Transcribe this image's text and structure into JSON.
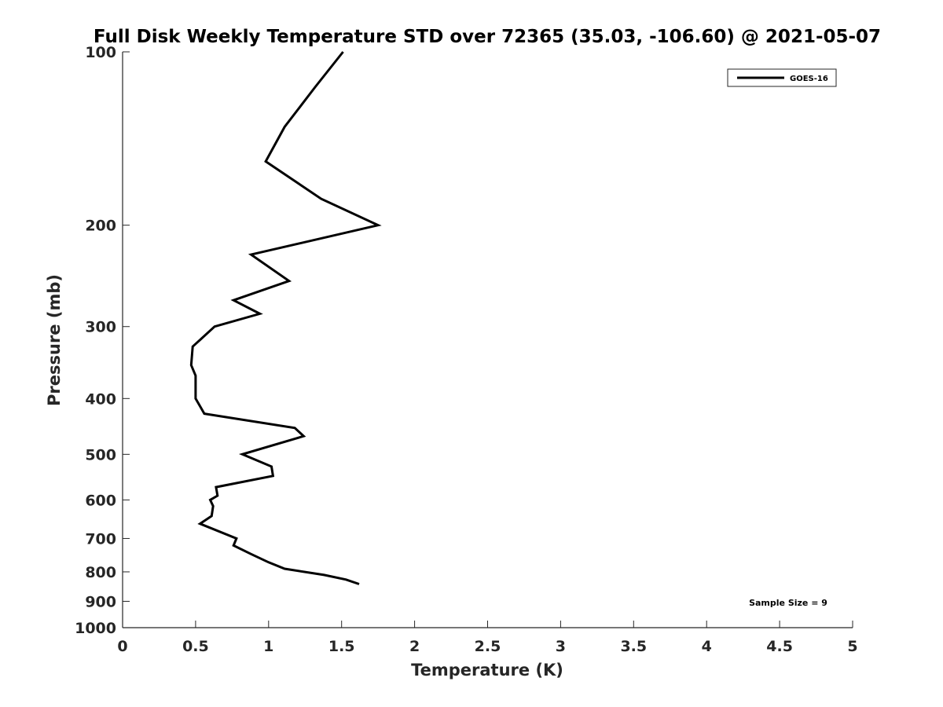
{
  "chart_data": {
    "type": "line",
    "title": "Full Disk Weekly Temperature STD over 72365 (35.03, -106.60) @ 2021-05-07",
    "xlabel": "Temperature (K)",
    "ylabel": "Pressure (mb)",
    "xlim": [
      0,
      5
    ],
    "ylim": [
      100,
      1000
    ],
    "y_scale": "log",
    "y_reversed": true,
    "xticks": [
      0,
      0.5,
      1,
      1.5,
      2,
      2.5,
      3,
      3.5,
      4,
      4.5,
      5
    ],
    "xtick_labels": [
      "0",
      "0.5",
      "1",
      "1.5",
      "2",
      "2.5",
      "3",
      "3.5",
      "4",
      "4.5",
      "5"
    ],
    "yticks": [
      100,
      200,
      300,
      400,
      500,
      600,
      700,
      800,
      900,
      1000
    ],
    "ytick_labels": [
      "100",
      "200",
      "300",
      "400",
      "500",
      "600",
      "700",
      "800",
      "900",
      "1000"
    ],
    "grid": false,
    "legend_position": "top-right",
    "annotation": "Sample Size = 9",
    "series": [
      {
        "name": "GOES-16",
        "color": "#000000",
        "points": [
          {
            "x": 1.51,
            "p": 100
          },
          {
            "x": 1.32,
            "p": 115
          },
          {
            "x": 1.11,
            "p": 135
          },
          {
            "x": 0.98,
            "p": 155
          },
          {
            "x": 1.36,
            "p": 180
          },
          {
            "x": 1.75,
            "p": 200
          },
          {
            "x": 0.88,
            "p": 225
          },
          {
            "x": 1.14,
            "p": 250
          },
          {
            "x": 0.76,
            "p": 270
          },
          {
            "x": 0.94,
            "p": 285
          },
          {
            "x": 0.63,
            "p": 300
          },
          {
            "x": 0.48,
            "p": 325
          },
          {
            "x": 0.47,
            "p": 350
          },
          {
            "x": 0.5,
            "p": 365
          },
          {
            "x": 0.5,
            "p": 400
          },
          {
            "x": 0.56,
            "p": 425
          },
          {
            "x": 1.18,
            "p": 450
          },
          {
            "x": 1.24,
            "p": 465
          },
          {
            "x": 0.82,
            "p": 500
          },
          {
            "x": 1.02,
            "p": 525
          },
          {
            "x": 1.03,
            "p": 545
          },
          {
            "x": 0.64,
            "p": 570
          },
          {
            "x": 0.65,
            "p": 590
          },
          {
            "x": 0.6,
            "p": 600
          },
          {
            "x": 0.62,
            "p": 615
          },
          {
            "x": 0.61,
            "p": 640
          },
          {
            "x": 0.53,
            "p": 660
          },
          {
            "x": 0.78,
            "p": 700
          },
          {
            "x": 0.76,
            "p": 720
          },
          {
            "x": 0.88,
            "p": 745
          },
          {
            "x": 1.0,
            "p": 770
          },
          {
            "x": 1.11,
            "p": 790
          },
          {
            "x": 1.38,
            "p": 810
          },
          {
            "x": 1.53,
            "p": 825
          },
          {
            "x": 1.62,
            "p": 840
          }
        ]
      }
    ]
  }
}
